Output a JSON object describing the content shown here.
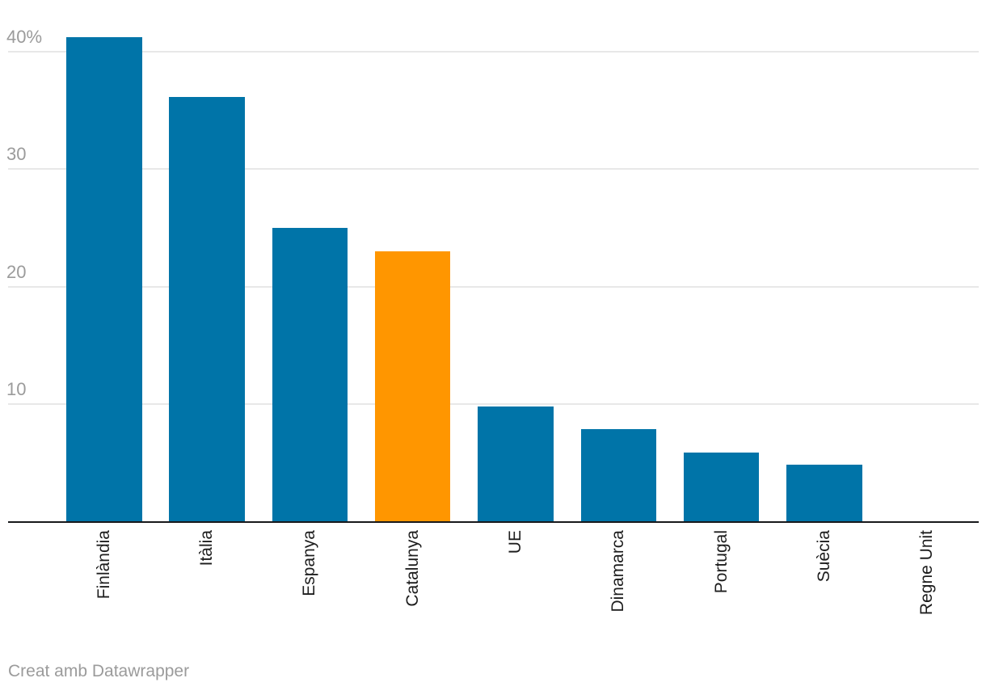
{
  "footer": {
    "credit": "Creat amb Datawrapper"
  },
  "colors": {
    "background": "#ffffff",
    "bar_default": "#0074a8",
    "bar_highlight": "#ff9600",
    "axis_line": "#18191b",
    "gridline": "#e8e8e8",
    "ytick_text": "#9b9b9b",
    "xlabel_text": "#1d1d1d",
    "footer_text": "#9b9b9b"
  },
  "chart_data": {
    "type": "bar",
    "title": "",
    "xlabel": "",
    "ylabel": "",
    "categories": [
      "Finlàndia",
      "Itàlia",
      "Espanya",
      "Catalunya",
      "UE",
      "Dinamarca",
      "Portugal",
      "Suècia",
      "Regne Unit"
    ],
    "values": [
      41.2,
      36.1,
      25,
      23,
      9.8,
      7.9,
      5.9,
      4.9,
      0
    ],
    "unit": "%",
    "highlight_category": "Catalunya",
    "highlight_index": 3,
    "ylim": [
      0,
      44.4
    ],
    "yticks": [
      10,
      20,
      30,
      40
    ],
    "ytick_labels": [
      "10",
      "20",
      "30",
      "40%"
    ],
    "grid": "horizontal",
    "legend": "none",
    "x_label_rotation": 90
  }
}
